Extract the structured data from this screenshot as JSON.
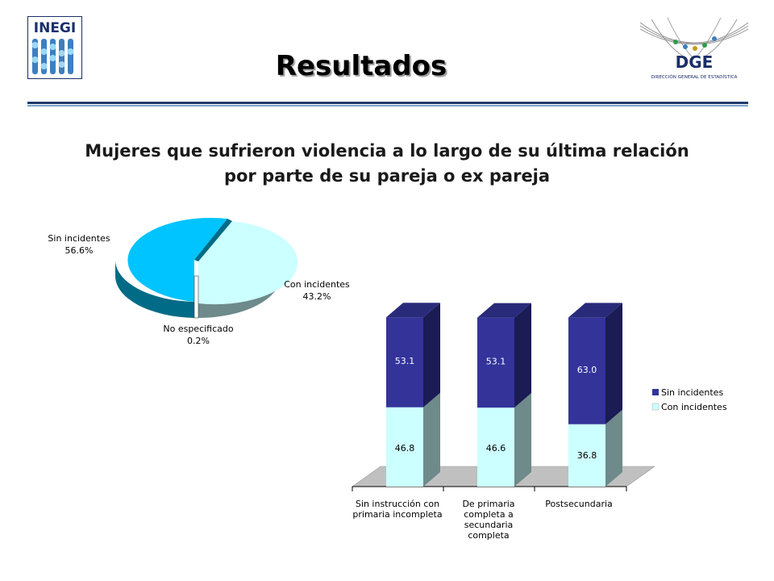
{
  "header": {
    "logo_left_text": "INEGI",
    "logo_right_text": "DGE",
    "logo_right_subtext": "DIRECCIÓN GENERAL DE ESTADÍSTICA",
    "title": "Resultados"
  },
  "subtitle": {
    "line1": "Mujeres que sufrieron violencia a lo largo de su última relación",
    "line2": "por parte de su pareja o ex pareja"
  },
  "colors": {
    "sin": "#00c4ff",
    "con": "#ccffff",
    "bar_sin": "#33339a",
    "bar_con": "#ccffff",
    "floor": "#c0c0c0",
    "rule": "#1f3a6b"
  },
  "chart_data": [
    {
      "type": "pie",
      "labels": [
        "Sin incidentes",
        "Con incidentes",
        "No especificado"
      ],
      "values": [
        56.6,
        43.2,
        0.2
      ],
      "value_labels": [
        "56.6%",
        "43.2%",
        "0.2%"
      ],
      "colors": [
        "#00c4ff",
        "#ccffff",
        "#ffffff"
      ]
    },
    {
      "type": "bar",
      "stacked": true,
      "categories": [
        [
          "Sin instrucción con",
          "primaria incompleta"
        ],
        [
          "De primaria",
          "completa a",
          "secundaria",
          "completa"
        ],
        [
          "Postsecundaria"
        ]
      ],
      "series": [
        {
          "name": "Sin incidentes",
          "values": [
            53.1,
            53.1,
            63.0
          ],
          "labels": [
            "53.1",
            "53.1",
            "63.0"
          ],
          "color": "#33339a"
        },
        {
          "name": "Con incidentes",
          "values": [
            46.8,
            46.6,
            36.8
          ],
          "labels": [
            "46.8",
            "46.6",
            "36.8"
          ],
          "color": "#ccffff"
        }
      ],
      "legend": "right"
    }
  ]
}
